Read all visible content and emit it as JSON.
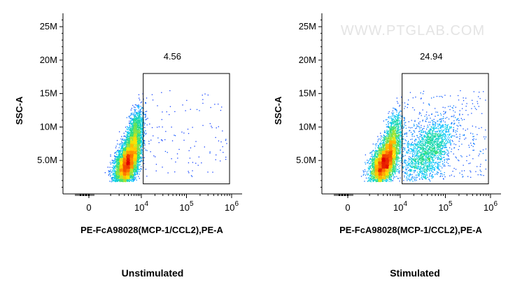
{
  "chart_data": [
    {
      "type": "scatter",
      "title": "",
      "xlabel": "PE-FcA98028(MCP-1/CCL2),PE-A",
      "ylabel": "SSC-A",
      "caption": "Unstimulated",
      "x_scale": "biexponential",
      "x_ticks": [
        {
          "value": 0,
          "base": "0",
          "exp": ""
        },
        {
          "value": 10000,
          "base": "10",
          "exp": "4"
        },
        {
          "value": 100000,
          "base": "10",
          "exp": "5"
        },
        {
          "value": 1000000,
          "base": "10",
          "exp": "6"
        }
      ],
      "y_ticks": [
        {
          "value": 5000000,
          "label": "5.0M"
        },
        {
          "value": 10000000,
          "label": "10M"
        },
        {
          "value": 15000000,
          "label": "15M"
        },
        {
          "value": 20000000,
          "label": "20M"
        },
        {
          "value": 25000000,
          "label": "25M"
        }
      ],
      "ylim": [
        0,
        27000000
      ],
      "gate": {
        "label": "4.56",
        "percent": 4.56,
        "x_range": [
          11000,
          900000
        ],
        "y_range": [
          1500000,
          18000000
        ]
      },
      "populations": [
        {
          "name": "",
          "x_center": 3500,
          "y_center": 4500000,
          "spread_x": 2200,
          "spread_y": 1800000,
          "events": 5200
        },
        {
          "name": "",
          "x_center": 6000,
          "y_center": 8500000,
          "spread_x": 2400,
          "spread_y": 2200000,
          "events": 1800
        }
      ]
    },
    {
      "type": "scatter",
      "title": "",
      "xlabel": "PE-FcA98028(MCP-1/CCL2),PE-A",
      "ylabel": "SSC-A",
      "caption": "Stimulated",
      "watermark": "WWW.PTGLAB.COM",
      "x_scale": "biexponential",
      "x_ticks": [
        {
          "value": 0,
          "base": "0",
          "exp": ""
        },
        {
          "value": 10000,
          "base": "10",
          "exp": "4"
        },
        {
          "value": 100000,
          "base": "10",
          "exp": "5"
        },
        {
          "value": 1000000,
          "base": "10",
          "exp": "6"
        }
      ],
      "y_ticks": [
        {
          "value": 5000000,
          "label": "5.0M"
        },
        {
          "value": 10000000,
          "label": "10M"
        },
        {
          "value": 15000000,
          "label": "15M"
        },
        {
          "value": 20000000,
          "label": "20M"
        },
        {
          "value": 25000000,
          "label": "25M"
        }
      ],
      "ylim": [
        0,
        27000000
      ],
      "gate": {
        "label": "24.94",
        "percent": 24.94,
        "x_range": [
          11000,
          900000
        ],
        "y_range": [
          1500000,
          18000000
        ]
      },
      "populations": [
        {
          "name": "",
          "x_center": 3000,
          "y_center": 4500000,
          "spread_x": 2200,
          "spread_y": 1800000,
          "events": 3600
        },
        {
          "name": "",
          "x_center": 5500,
          "y_center": 8000000,
          "spread_x": 2500,
          "spread_y": 2200000,
          "events": 1200
        },
        {
          "name": "",
          "x_center": 40000,
          "y_center": 6500000,
          "spread_x": 40000,
          "spread_y": 2600000,
          "events": 1800
        }
      ]
    }
  ],
  "colors": {
    "density_scale": [
      "#1a1aff",
      "#00c8ff",
      "#29e07a",
      "#ffe600",
      "#ff7a00",
      "#e00000"
    ],
    "axis": "#000000",
    "watermark": "#e4e4e4"
  }
}
